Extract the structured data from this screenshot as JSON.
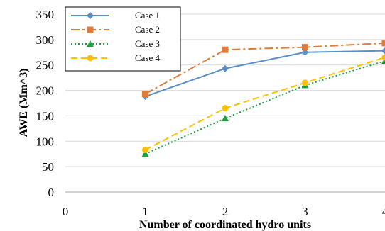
{
  "chart_data": {
    "type": "line",
    "title": "",
    "xlabel": "Number of coordinated hydro units",
    "ylabel": "AWE (Mm^3)",
    "xlim": [
      0,
      4
    ],
    "ylim": [
      0,
      350
    ],
    "x_ticks": [
      "0",
      "1",
      "2",
      "3",
      "4"
    ],
    "y_ticks": [
      "0",
      "50",
      "100",
      "150",
      "200",
      "250",
      "300",
      "350"
    ],
    "grid": "horizontal",
    "legend_position": "top-left",
    "x": [
      1,
      2,
      3,
      4
    ],
    "series": [
      {
        "name": "Case 1",
        "values": [
          188,
          243,
          275,
          278
        ],
        "color": "#5b8fc9",
        "dash": "solid",
        "marker": "diamond"
      },
      {
        "name": "Case 2",
        "values": [
          193,
          280,
          285,
          293
        ],
        "color": "#e07b39",
        "dash": "dashdot",
        "marker": "square"
      },
      {
        "name": "Case 3",
        "values": [
          75,
          145,
          210,
          258
        ],
        "color": "#1aa33b",
        "dash": "dotted",
        "marker": "triangle"
      },
      {
        "name": "Case 4",
        "values": [
          83,
          165,
          215,
          265
        ],
        "color": "#ffc000",
        "dash": "dashed",
        "marker": "circle"
      }
    ]
  }
}
